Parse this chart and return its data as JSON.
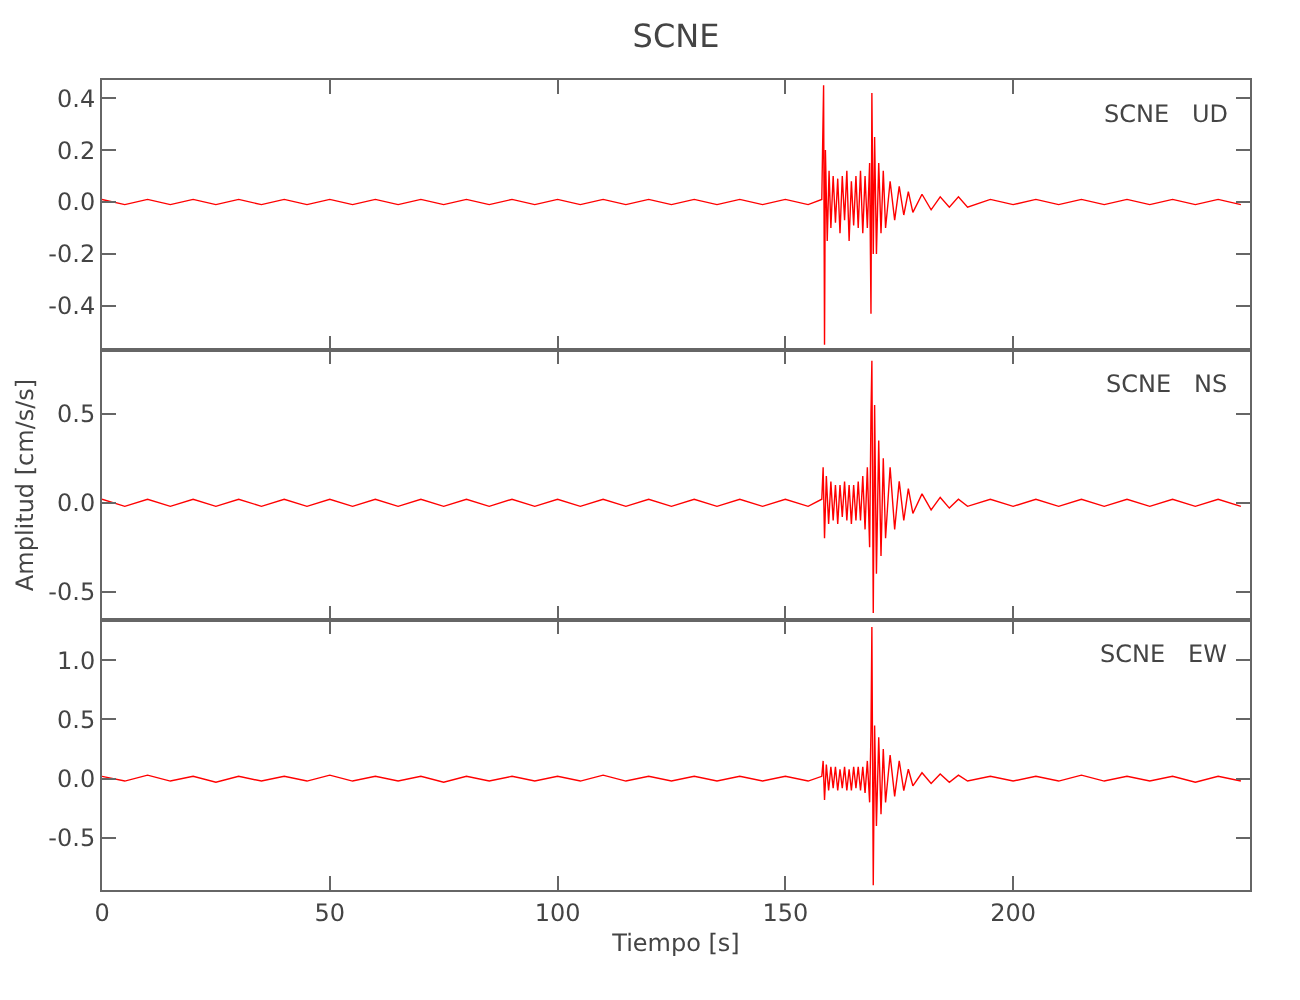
{
  "chart_data": [
    {
      "type": "line",
      "title": "SCNE",
      "annotations": [
        "SCNE   UD"
      ],
      "xlim": [
        0,
        252
      ],
      "xticks": [
        0,
        50,
        100,
        150,
        200
      ],
      "ylim": [
        -0.57,
        0.47
      ],
      "yticks": [
        {
          "value": -0.4,
          "label": "-0.4"
        },
        {
          "value": -0.2,
          "label": "-0.2"
        },
        {
          "value": 0,
          "label": "0.0"
        },
        {
          "value": 0.2,
          "label": "0.2"
        },
        {
          "value": 0.4,
          "label": "0.4"
        }
      ],
      "tick_labels": "y",
      "marker": "none",
      "line_style": "solid",
      "series": [
        {
          "color": "#ff0000",
          "x": [
            0,
            5,
            10,
            15,
            20,
            25,
            30,
            35,
            40,
            45,
            50,
            55,
            60,
            65,
            70,
            75,
            80,
            85,
            90,
            95,
            100,
            105,
            110,
            115,
            120,
            125,
            130,
            135,
            140,
            145,
            150,
            155,
            158,
            158.4,
            158.6,
            158.8,
            159.2,
            159.6,
            160,
            160.5,
            161,
            161.5,
            162,
            162.5,
            163,
            163.5,
            164,
            164.5,
            165,
            165.5,
            166,
            166.5,
            167,
            167.5,
            168,
            168.5,
            168.8,
            169,
            169.3,
            169.6,
            170,
            170.5,
            171,
            171.5,
            172,
            173,
            174,
            175,
            176,
            177,
            178,
            180,
            182,
            184,
            186,
            188,
            190,
            195,
            200,
            205,
            210,
            215,
            220,
            225,
            230,
            235,
            240,
            245,
            250
          ],
          "values": [
            0.01,
            -0.01,
            0.01,
            -0.01,
            0.01,
            -0.01,
            0.01,
            -0.01,
            0.01,
            -0.01,
            0.01,
            -0.01,
            0.01,
            -0.01,
            0.01,
            -0.01,
            0.01,
            -0.01,
            0.01,
            -0.01,
            0.01,
            -0.01,
            0.01,
            -0.01,
            0.01,
            -0.01,
            0.01,
            -0.01,
            0.01,
            -0.01,
            0.01,
            -0.01,
            0.01,
            0.45,
            -0.55,
            0.2,
            -0.15,
            0.12,
            -0.1,
            0.1,
            -0.08,
            0.09,
            -0.12,
            0.1,
            -0.07,
            0.12,
            -0.15,
            0.08,
            -0.09,
            0.1,
            -0.1,
            0.12,
            -0.12,
            0.1,
            -0.1,
            0.15,
            -0.43,
            0.42,
            -0.2,
            0.25,
            -0.2,
            0.15,
            -0.12,
            0.12,
            -0.1,
            0.08,
            -0.07,
            0.06,
            -0.05,
            0.04,
            -0.04,
            0.03,
            -0.03,
            0.02,
            -0.02,
            0.02,
            -0.02,
            0.01,
            -0.01,
            0.01,
            -0.01,
            0.01,
            -0.01,
            0.01,
            -0.01,
            0.01,
            -0.01,
            0.01,
            -0.01
          ]
        }
      ]
    },
    {
      "type": "line",
      "ylabel": "Amplitud [cm/s/s]",
      "annotations": [
        "SCNE   NS"
      ],
      "xlim": [
        0,
        252
      ],
      "xticks": [
        0,
        50,
        100,
        150,
        200
      ],
      "ylim": [
        -0.66,
        0.86
      ],
      "yticks": [
        {
          "value": -0.5,
          "label": "-0.5"
        },
        {
          "value": 0,
          "label": "0.0"
        },
        {
          "value": 0.5,
          "label": "0.5"
        }
      ],
      "tick_labels": "y",
      "marker": "none",
      "line_style": "solid",
      "series": [
        {
          "color": "#ff0000",
          "x": [
            0,
            5,
            10,
            15,
            20,
            25,
            30,
            35,
            40,
            45,
            50,
            55,
            60,
            65,
            70,
            75,
            80,
            85,
            90,
            95,
            100,
            105,
            110,
            115,
            120,
            125,
            130,
            135,
            140,
            145,
            150,
            155,
            158,
            158.3,
            158.6,
            159,
            159.5,
            160,
            160.5,
            161,
            161.5,
            162,
            162.5,
            163,
            163.5,
            164,
            164.5,
            165,
            165.5,
            166,
            166.5,
            167,
            167.5,
            168,
            168.5,
            168.8,
            169,
            169.3,
            169.6,
            170,
            170.5,
            171,
            171.5,
            172,
            173,
            174,
            175,
            176,
            177,
            178,
            180,
            182,
            184,
            186,
            188,
            190,
            195,
            200,
            205,
            210,
            215,
            220,
            225,
            230,
            235,
            240,
            245,
            250
          ],
          "values": [
            0.02,
            -0.02,
            0.02,
            -0.02,
            0.02,
            -0.02,
            0.02,
            -0.02,
            0.02,
            -0.02,
            0.02,
            -0.02,
            0.02,
            -0.02,
            0.02,
            -0.02,
            0.02,
            -0.02,
            0.02,
            -0.02,
            0.02,
            -0.02,
            0.02,
            -0.02,
            0.02,
            -0.02,
            0.02,
            -0.02,
            0.02,
            -0.02,
            0.02,
            -0.02,
            0.02,
            0.2,
            -0.2,
            0.15,
            -0.12,
            0.12,
            -0.1,
            0.1,
            -0.12,
            0.1,
            -0.08,
            0.12,
            -0.1,
            0.1,
            -0.12,
            0.1,
            -0.1,
            0.12,
            -0.1,
            0.15,
            -0.15,
            0.2,
            -0.25,
            0.5,
            0.8,
            -0.62,
            0.55,
            -0.4,
            0.35,
            -0.3,
            0.25,
            -0.2,
            0.2,
            -0.15,
            0.12,
            -0.1,
            0.08,
            -0.06,
            0.05,
            -0.04,
            0.03,
            -0.03,
            0.02,
            -0.02,
            0.02,
            -0.02,
            0.02,
            -0.02,
            0.02,
            -0.02,
            0.02,
            -0.02,
            0.02,
            -0.02,
            0.02,
            -0.02
          ]
        }
      ]
    },
    {
      "type": "line",
      "xlabel": "Tiempo [s]",
      "annotations": [
        "SCNE   EW"
      ],
      "xlim": [
        0,
        252
      ],
      "xticks": [
        0,
        50,
        100,
        150,
        200
      ],
      "ylim": [
        -0.94,
        1.34
      ],
      "yticks": [
        {
          "value": -0.5,
          "label": "-0.5"
        },
        {
          "value": 0,
          "label": "0.0"
        },
        {
          "value": 0.5,
          "label": "0.5"
        },
        {
          "value": 1,
          "label": "1.0"
        }
      ],
      "marker": "none",
      "line_style": "solid",
      "series": [
        {
          "color": "#ff0000",
          "x": [
            0,
            5,
            10,
            15,
            20,
            25,
            30,
            35,
            40,
            45,
            50,
            55,
            60,
            65,
            70,
            75,
            80,
            85,
            90,
            95,
            100,
            105,
            110,
            115,
            120,
            125,
            130,
            135,
            140,
            145,
            150,
            155,
            158,
            158.3,
            158.6,
            159,
            159.5,
            160,
            160.5,
            161,
            161.5,
            162,
            162.5,
            163,
            163.5,
            164,
            164.5,
            165,
            165.5,
            166,
            166.5,
            167,
            167.5,
            168,
            168.5,
            168.8,
            169,
            169.3,
            169.6,
            170,
            170.5,
            171,
            171.5,
            172,
            173,
            174,
            175,
            176,
            177,
            178,
            180,
            182,
            184,
            186,
            188,
            190,
            195,
            200,
            205,
            210,
            215,
            220,
            225,
            230,
            235,
            240,
            245,
            250
          ],
          "values": [
            0.02,
            -0.02,
            0.03,
            -0.02,
            0.02,
            -0.03,
            0.02,
            -0.02,
            0.02,
            -0.02,
            0.03,
            -0.02,
            0.02,
            -0.02,
            0.02,
            -0.03,
            0.02,
            -0.02,
            0.02,
            -0.02,
            0.02,
            -0.02,
            0.03,
            -0.02,
            0.02,
            -0.02,
            0.02,
            -0.02,
            0.02,
            -0.02,
            0.02,
            -0.02,
            0.02,
            0.15,
            -0.18,
            0.12,
            -0.1,
            0.1,
            -0.08,
            0.1,
            -0.1,
            0.08,
            -0.08,
            0.1,
            -0.1,
            0.08,
            -0.1,
            0.1,
            -0.08,
            0.1,
            -0.1,
            0.1,
            -0.12,
            0.15,
            -0.2,
            0.4,
            1.28,
            -0.9,
            0.45,
            -0.4,
            0.35,
            -0.3,
            0.25,
            -0.2,
            0.2,
            -0.15,
            0.15,
            -0.1,
            0.08,
            -0.06,
            0.05,
            -0.04,
            0.04,
            -0.03,
            0.03,
            -0.02,
            0.02,
            -0.02,
            0.02,
            -0.02,
            0.03,
            -0.02,
            0.02,
            -0.02,
            0.02,
            -0.03,
            0.02,
            -0.02
          ]
        }
      ]
    }
  ]
}
